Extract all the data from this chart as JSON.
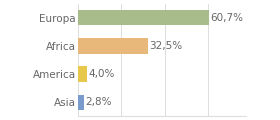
{
  "categories": [
    "Europa",
    "Africa",
    "America",
    "Asia"
  ],
  "values": [
    60.7,
    32.5,
    4.0,
    2.8
  ],
  "labels": [
    "60,7%",
    "32,5%",
    "4,0%",
    "2,8%"
  ],
  "bar_colors": [
    "#a8bb8a",
    "#e8b87a",
    "#e8c84a",
    "#7a9ccc"
  ],
  "background_color": "#ffffff",
  "xlim": [
    0,
    78
  ],
  "bar_height": 0.55,
  "fontsize": 7.5,
  "label_fontsize": 7.5,
  "text_color": "#666666",
  "grid_color": "#dddddd"
}
